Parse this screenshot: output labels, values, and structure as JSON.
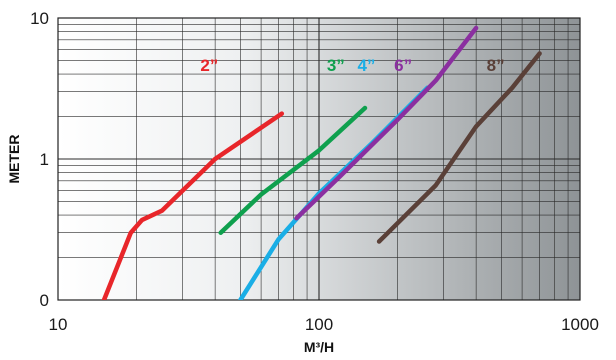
{
  "chart_data": {
    "type": "line",
    "title": "",
    "xlabel": "M³/H",
    "ylabel": "METER",
    "x_scale": "log",
    "y_scale": "log",
    "xlim": [
      10,
      1000
    ],
    "ylim": [
      0.1,
      10
    ],
    "grid": true,
    "x_ticks": [
      {
        "value": 10,
        "label": "10"
      },
      {
        "value": 100,
        "label": "100"
      },
      {
        "value": 1000,
        "label": "1000"
      }
    ],
    "y_ticks": [
      {
        "value": 0.1,
        "label": "0"
      },
      {
        "value": 1,
        "label": "1"
      },
      {
        "value": 10,
        "label": "10"
      }
    ],
    "series": [
      {
        "name": "2”",
        "color": "#e8262a",
        "x": [
          15,
          19,
          21,
          25,
          40,
          72
        ],
        "y": [
          0.1,
          0.3,
          0.37,
          0.43,
          1.0,
          2.1
        ]
      },
      {
        "name": "3”",
        "color": "#0fa04e",
        "x": [
          42,
          60,
          100,
          150
        ],
        "y": [
          0.3,
          0.56,
          1.15,
          2.3
        ]
      },
      {
        "name": "4”",
        "color": "#1aaee6",
        "x": [
          50,
          70,
          100,
          160,
          260
        ],
        "y": [
          0.1,
          0.27,
          0.57,
          1.3,
          3.2
        ]
      },
      {
        "name": "6”",
        "color": "#8b2fa0",
        "x": [
          82,
          120,
          200,
          280,
          400
        ],
        "y": [
          0.38,
          0.75,
          1.9,
          3.6,
          8.5
        ]
      },
      {
        "name": "8”",
        "color": "#5a4038",
        "x": [
          170,
          280,
          400,
          550,
          700
        ],
        "y": [
          0.26,
          0.65,
          1.7,
          3.2,
          5.6
        ]
      }
    ]
  }
}
